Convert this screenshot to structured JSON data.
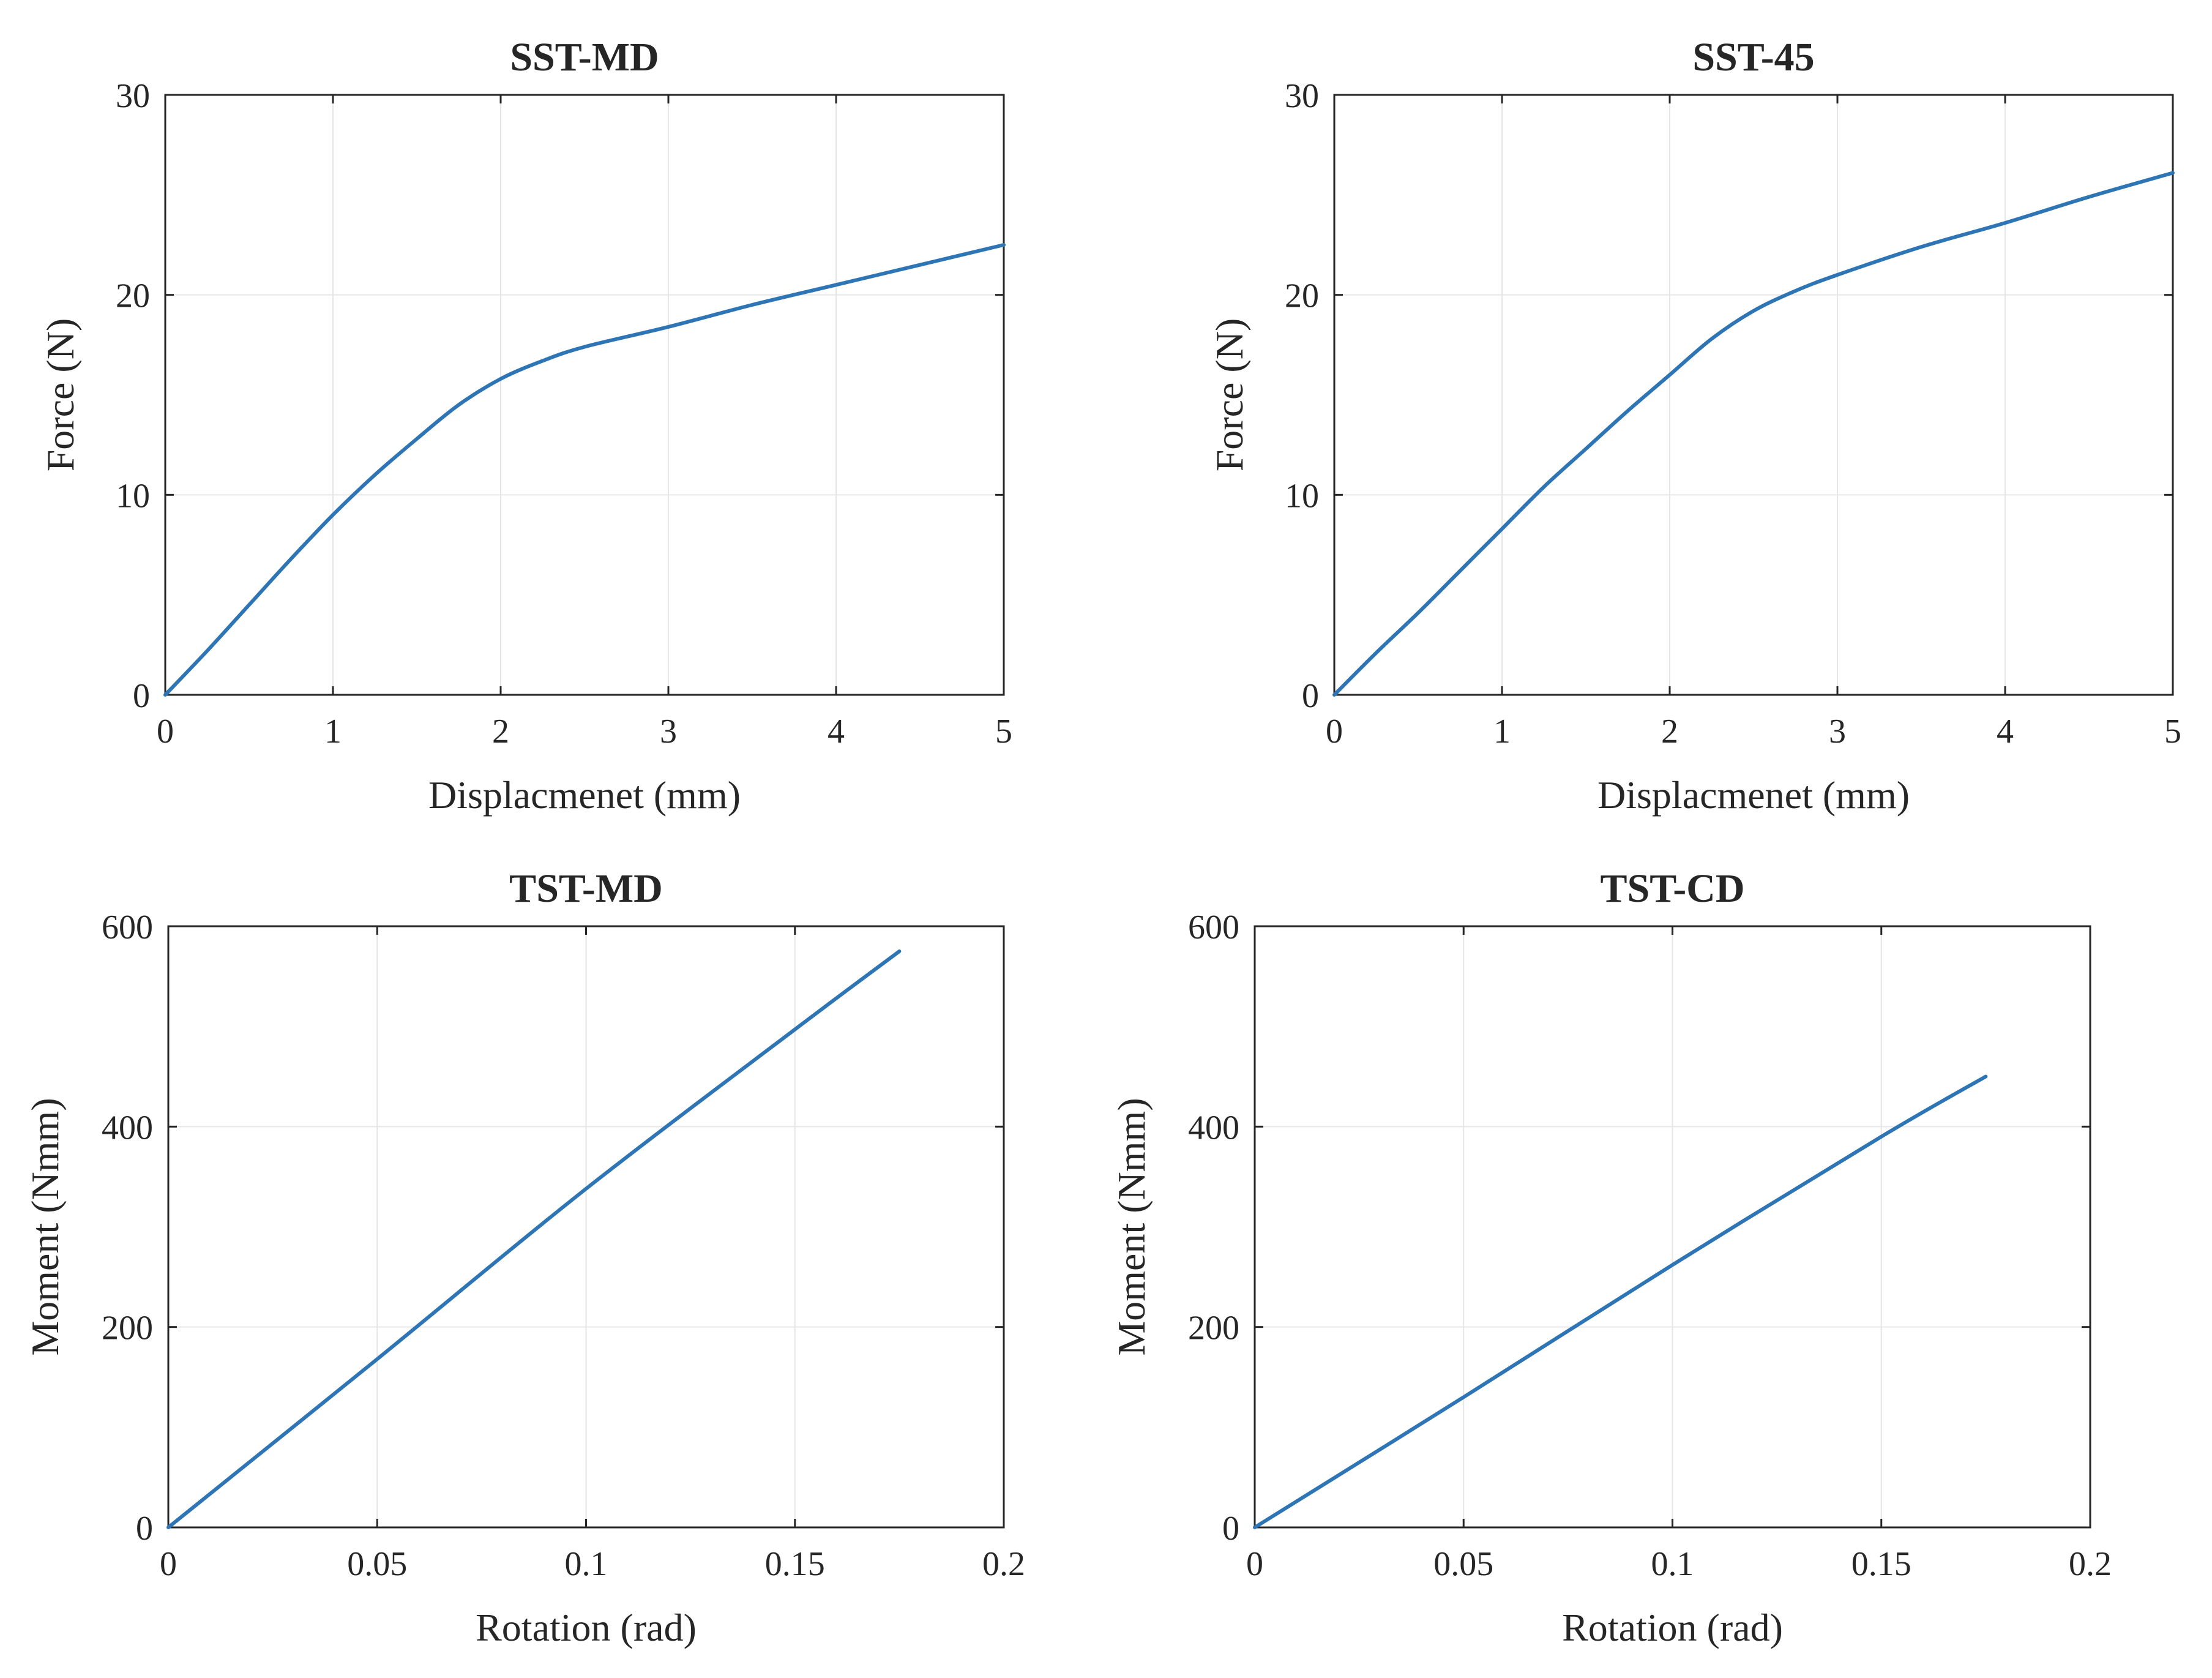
{
  "figure": {
    "chart_data": [
      {
        "type": "line",
        "title": "SST-MD",
        "xlabel": "Displacmenet (mm)",
        "ylabel": "Force (N)",
        "xlim": [
          0,
          5
        ],
        "ylim": [
          0,
          30
        ],
        "xticks": [
          "0",
          "1",
          "2",
          "3",
          "4",
          "5"
        ],
        "yticks": [
          "0",
          "10",
          "20",
          "30"
        ],
        "grid": true,
        "series": [
          {
            "color": "#2e75b6",
            "x": [
              0,
              0.25,
              0.5,
              0.75,
              1.0,
              1.25,
              1.5,
              1.75,
              2.0,
              2.25,
              2.5,
              3.0,
              3.5,
              4.0,
              4.5,
              5.0
            ],
            "y": [
              0,
              2.2,
              4.5,
              6.8,
              9.0,
              11.0,
              12.8,
              14.5,
              15.8,
              16.7,
              17.4,
              18.4,
              19.5,
              20.5,
              21.5,
              22.5
            ]
          }
        ]
      },
      {
        "type": "line",
        "title": "SST-45",
        "xlabel": "Displacmenet (mm)",
        "ylabel": "Force (N)",
        "xlim": [
          0,
          5
        ],
        "ylim": [
          0,
          30
        ],
        "xticks": [
          "0",
          "1",
          "2",
          "3",
          "4",
          "5"
        ],
        "yticks": [
          "0",
          "10",
          "20",
          "30"
        ],
        "grid": true,
        "series": [
          {
            "color": "#2e75b6",
            "x": [
              0,
              0.25,
              0.5,
              0.75,
              1.0,
              1.25,
              1.5,
              1.75,
              2.0,
              2.25,
              2.5,
              2.75,
              3.0,
              3.5,
              4.0,
              4.5,
              5.0
            ],
            "y": [
              0,
              2.1,
              4.1,
              6.2,
              8.3,
              10.4,
              12.3,
              14.2,
              16.0,
              17.8,
              19.2,
              20.2,
              21.0,
              22.4,
              23.6,
              24.9,
              26.1
            ]
          }
        ]
      },
      {
        "type": "line",
        "title": "TST-MD",
        "xlabel": "Rotation (rad)",
        "ylabel": "Moment (Nmm)",
        "xlim": [
          0,
          0.2
        ],
        "ylim": [
          0,
          600
        ],
        "xticks": [
          "0",
          "0.05",
          "0.1",
          "0.15",
          "0.2"
        ],
        "yticks": [
          "0",
          "200",
          "400",
          "600"
        ],
        "grid": true,
        "series": [
          {
            "color": "#2e75b6",
            "x": [
              0,
              0.05,
              0.1,
              0.15,
              0.175
            ],
            "y": [
              0,
              168,
              338,
              497,
              575
            ]
          }
        ]
      },
      {
        "type": "line",
        "title": "TST-CD",
        "xlabel": "Rotation (rad)",
        "ylabel": "Moment (Nmm)",
        "xlim": [
          0,
          0.2
        ],
        "ylim": [
          0,
          600
        ],
        "xticks": [
          "0",
          "0.05",
          "0.1",
          "0.15",
          "0.2"
        ],
        "yticks": [
          "0",
          "200",
          "400",
          "600"
        ],
        "grid": true,
        "series": [
          {
            "color": "#2e75b6",
            "x": [
              0,
              0.05,
              0.1,
              0.15,
              0.175
            ],
            "y": [
              0,
              130,
              262,
              390,
              450
            ]
          }
        ]
      }
    ]
  }
}
